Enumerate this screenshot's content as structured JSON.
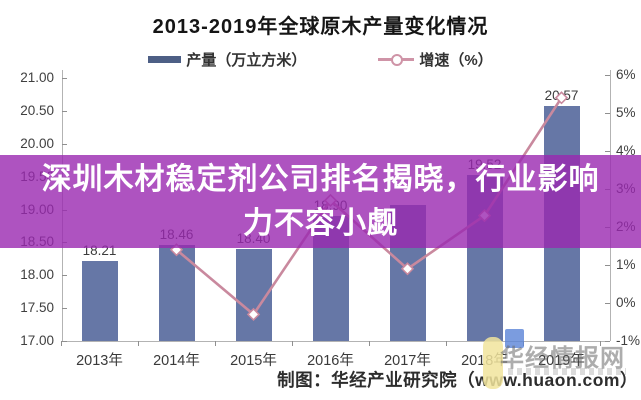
{
  "title": "2013-2019年全球原木产量变化情况",
  "legend": {
    "series1": "产量（万立方米）",
    "series2": "增速（%）"
  },
  "overlay_banner": {
    "line1": "深圳木材稳定剂公司排名揭晓，行业影响",
    "line2": "力不容小觑"
  },
  "footer": {
    "credit": "制图：华经产业研究院（www.huaon.com）"
  },
  "watermark": {
    "text": "华经情报网"
  },
  "colors": {
    "bar": "#6677a6",
    "legend_bar_swatch": "#4d5f85",
    "growth_line": "#c9899e",
    "marker_fill": "#ffffff",
    "banner": "rgba(154,40,176,0.80)"
  },
  "chart_data": {
    "type": "bar",
    "title": "2013-2019年全球原木产量变化情况",
    "categories": [
      "2013年",
      "2014年",
      "2015年",
      "2016年",
      "2017年",
      "2018年",
      "2019年"
    ],
    "series": [
      {
        "name": "产量 (万立方米)",
        "type": "bar",
        "values": [
          18.21,
          18.46,
          18.4,
          18.9,
          19.07,
          19.52,
          20.57
        ],
        "visible_labels": [
          "18.21",
          "18.46",
          "18.40",
          "18.90",
          "",
          "19.52",
          "20.57"
        ]
      },
      {
        "name": "增速 (%)",
        "type": "line",
        "values": [
          null,
          1.4,
          -0.3,
          2.7,
          0.9,
          2.3,
          5.4
        ]
      }
    ],
    "left_axis": {
      "label": "产量 (万立方米)",
      "ticks": [
        "21.00",
        "20.50",
        "20.00",
        "19.50",
        "19.00",
        "18.50",
        "18.00",
        "17.50",
        "17.00"
      ],
      "range": [
        17.0,
        21.0
      ]
    },
    "right_axis": {
      "label": "增速 (%)",
      "ticks": [
        "6%",
        "5%",
        "4%",
        "3%",
        "2%",
        "1%",
        "0%",
        "-1%"
      ],
      "range": [
        -1,
        6
      ]
    },
    "grid": false,
    "legend_position": "top"
  }
}
